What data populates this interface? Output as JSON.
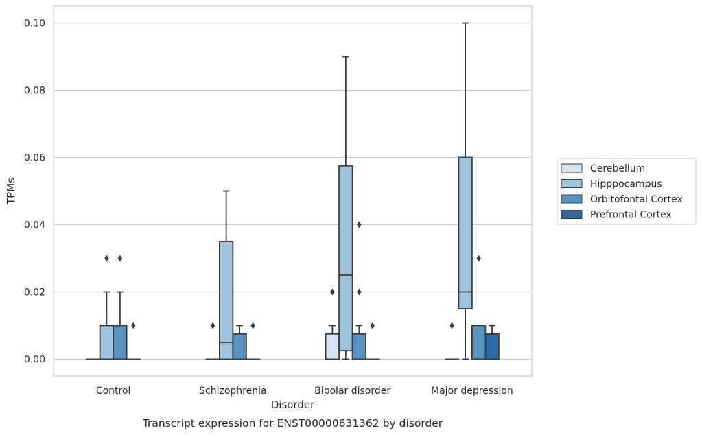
{
  "chart_data": {
    "type": "box",
    "title": "",
    "caption": "Transcript expression for ENST00000631362 by disorder",
    "xlabel": "Disorder",
    "ylabel": "TPMs",
    "ylim": [
      -0.005,
      0.105
    ],
    "yticks": [
      "0.00",
      "0.02",
      "0.04",
      "0.06",
      "0.08",
      "0.10"
    ],
    "grid": true,
    "legend_position": "center-right",
    "categories": [
      "Control",
      "Schizophrenia",
      "Bipolar disorder",
      "Major depression"
    ],
    "series": [
      {
        "name": "Cerebellum",
        "color": "#d4e3f0",
        "boxes": [
          {
            "q1": 0,
            "median": 0,
            "q3": 0,
            "whisker_low": 0,
            "whisker_high": 0,
            "outliers": []
          },
          {
            "q1": 0,
            "median": 0,
            "q3": 0,
            "whisker_low": 0,
            "whisker_high": 0,
            "outliers": [
              0.01
            ]
          },
          {
            "q1": 0,
            "median": 0,
            "q3": 0.0075,
            "whisker_low": 0,
            "whisker_high": 0.01,
            "outliers": [
              0.02
            ]
          },
          {
            "q1": 0,
            "median": 0,
            "q3": 0,
            "whisker_low": 0,
            "whisker_high": 0,
            "outliers": [
              0.01
            ]
          }
        ]
      },
      {
        "name": "Hipppocampus",
        "color": "#9dc3dd",
        "boxes": [
          {
            "q1": 0,
            "median": 0,
            "q3": 0.01,
            "whisker_low": 0,
            "whisker_high": 0.02,
            "outliers": [
              0.03
            ]
          },
          {
            "q1": 0,
            "median": 0.005,
            "q3": 0.035,
            "whisker_low": 0,
            "whisker_high": 0.05,
            "outliers": []
          },
          {
            "q1": 0.0025,
            "median": 0.025,
            "q3": 0.0575,
            "whisker_low": 0,
            "whisker_high": 0.09,
            "outliers": []
          },
          {
            "q1": 0.015,
            "median": 0.02,
            "q3": 0.06,
            "whisker_low": 0,
            "whisker_high": 0.1,
            "outliers": []
          }
        ]
      },
      {
        "name": "Orbitofontal Cortex",
        "color": "#5693bf",
        "boxes": [
          {
            "q1": 0,
            "median": 0,
            "q3": 0.01,
            "whisker_low": 0,
            "whisker_high": 0.02,
            "outliers": [
              0.03
            ]
          },
          {
            "q1": 0,
            "median": 0,
            "q3": 0.0075,
            "whisker_low": 0,
            "whisker_high": 0.01,
            "outliers": []
          },
          {
            "q1": 0,
            "median": 0,
            "q3": 0.0075,
            "whisker_low": 0,
            "whisker_high": 0.01,
            "outliers": [
              0.02,
              0.04
            ]
          },
          {
            "q1": 0,
            "median": 0,
            "q3": 0.01,
            "whisker_low": 0,
            "whisker_high": 0.01,
            "outliers": [
              0.03
            ]
          }
        ]
      },
      {
        "name": "Prefrontal Cortex",
        "color": "#2b6aa5",
        "boxes": [
          {
            "q1": 0,
            "median": 0,
            "q3": 0,
            "whisker_low": 0,
            "whisker_high": 0,
            "outliers": [
              0.01
            ]
          },
          {
            "q1": 0,
            "median": 0,
            "q3": 0,
            "whisker_low": 0,
            "whisker_high": 0,
            "outliers": [
              0.01
            ]
          },
          {
            "q1": 0,
            "median": 0,
            "q3": 0,
            "whisker_low": 0,
            "whisker_high": 0,
            "outliers": [
              0.01
            ]
          },
          {
            "q1": 0,
            "median": 0,
            "q3": 0.0075,
            "whisker_low": 0,
            "whisker_high": 0.01,
            "outliers": []
          }
        ]
      }
    ]
  }
}
